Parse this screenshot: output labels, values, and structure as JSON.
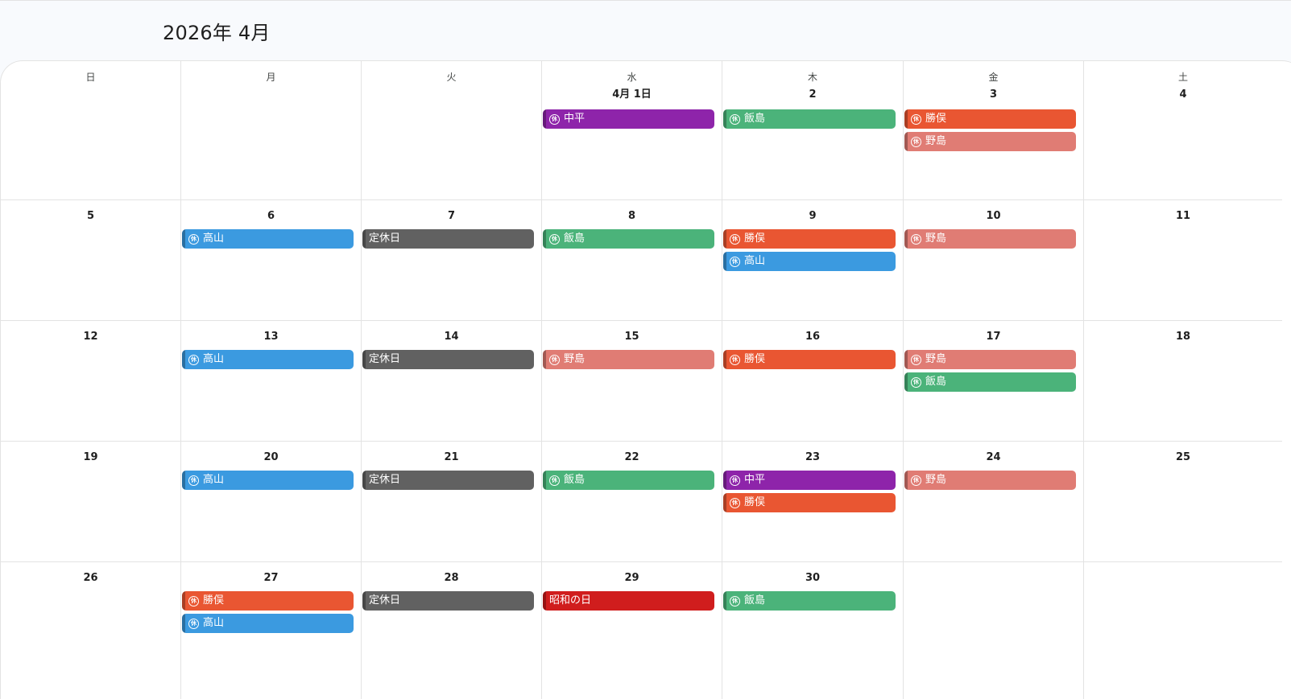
{
  "header": {
    "title": "2026年 4月"
  },
  "weekdays": [
    "日",
    "月",
    "火",
    "水",
    "木",
    "金",
    "土"
  ],
  "colors": {
    "nakadaira": "#8e24aa",
    "iijima": "#4bb37a",
    "katsumata": "#e95632",
    "nojima": "#e07c74",
    "takayama": "#3b9ae0",
    "closed": "#616161",
    "holiday": "#d01d1d"
  },
  "icons": {
    "leave_badge": "leave-badge-icon",
    "leave_badge_glyph": "休"
  },
  "weeks": [
    [
      {
        "day": "",
        "events": []
      },
      {
        "day": "",
        "events": []
      },
      {
        "day": "",
        "events": []
      },
      {
        "day": "4月 1日",
        "events": [
          {
            "label": "中平",
            "kind": "nakadaira",
            "icon": true
          }
        ]
      },
      {
        "day": "2",
        "events": [
          {
            "label": "飯島",
            "kind": "iijima",
            "icon": true
          }
        ]
      },
      {
        "day": "3",
        "events": [
          {
            "label": "勝俣",
            "kind": "katsumata",
            "icon": true
          },
          {
            "label": "野島",
            "kind": "nojima",
            "icon": true
          }
        ]
      },
      {
        "day": "4",
        "events": []
      }
    ],
    [
      {
        "day": "5",
        "events": []
      },
      {
        "day": "6",
        "events": [
          {
            "label": "高山",
            "kind": "takayama",
            "icon": true
          }
        ]
      },
      {
        "day": "7",
        "events": [
          {
            "label": "定休日",
            "kind": "closed",
            "icon": false
          }
        ]
      },
      {
        "day": "8",
        "events": [
          {
            "label": "飯島",
            "kind": "iijima",
            "icon": true
          }
        ]
      },
      {
        "day": "9",
        "events": [
          {
            "label": "勝俣",
            "kind": "katsumata",
            "icon": true
          },
          {
            "label": "高山",
            "kind": "takayama",
            "icon": true
          }
        ]
      },
      {
        "day": "10",
        "events": [
          {
            "label": "野島",
            "kind": "nojima",
            "icon": true
          }
        ]
      },
      {
        "day": "11",
        "events": []
      }
    ],
    [
      {
        "day": "12",
        "events": []
      },
      {
        "day": "13",
        "events": [
          {
            "label": "高山",
            "kind": "takayama",
            "icon": true
          }
        ]
      },
      {
        "day": "14",
        "events": [
          {
            "label": "定休日",
            "kind": "closed",
            "icon": false
          }
        ]
      },
      {
        "day": "15",
        "events": [
          {
            "label": "野島",
            "kind": "nojima",
            "icon": true
          }
        ]
      },
      {
        "day": "16",
        "events": [
          {
            "label": "勝俣",
            "kind": "katsumata",
            "icon": true
          }
        ]
      },
      {
        "day": "17",
        "events": [
          {
            "label": "野島",
            "kind": "nojima",
            "icon": true
          },
          {
            "label": "飯島",
            "kind": "iijima",
            "icon": true
          }
        ]
      },
      {
        "day": "18",
        "events": []
      }
    ],
    [
      {
        "day": "19",
        "events": []
      },
      {
        "day": "20",
        "events": [
          {
            "label": "高山",
            "kind": "takayama",
            "icon": true
          }
        ]
      },
      {
        "day": "21",
        "events": [
          {
            "label": "定休日",
            "kind": "closed",
            "icon": false
          }
        ]
      },
      {
        "day": "22",
        "events": [
          {
            "label": "飯島",
            "kind": "iijima",
            "icon": true
          }
        ]
      },
      {
        "day": "23",
        "events": [
          {
            "label": "中平",
            "kind": "nakadaira",
            "icon": true
          },
          {
            "label": "勝俣",
            "kind": "katsumata",
            "icon": true
          }
        ]
      },
      {
        "day": "24",
        "events": [
          {
            "label": "野島",
            "kind": "nojima",
            "icon": true
          }
        ]
      },
      {
        "day": "25",
        "events": []
      }
    ],
    [
      {
        "day": "26",
        "events": []
      },
      {
        "day": "27",
        "events": [
          {
            "label": "勝俣",
            "kind": "katsumata",
            "icon": true
          },
          {
            "label": "高山",
            "kind": "takayama",
            "icon": true
          }
        ]
      },
      {
        "day": "28",
        "events": [
          {
            "label": "定休日",
            "kind": "closed",
            "icon": false
          }
        ]
      },
      {
        "day": "29",
        "events": [
          {
            "label": "昭和の日",
            "kind": "holiday",
            "icon": false
          }
        ]
      },
      {
        "day": "30",
        "events": [
          {
            "label": "飯島",
            "kind": "iijima",
            "icon": true
          }
        ]
      },
      {
        "day": "",
        "events": []
      },
      {
        "day": "",
        "events": []
      }
    ]
  ]
}
